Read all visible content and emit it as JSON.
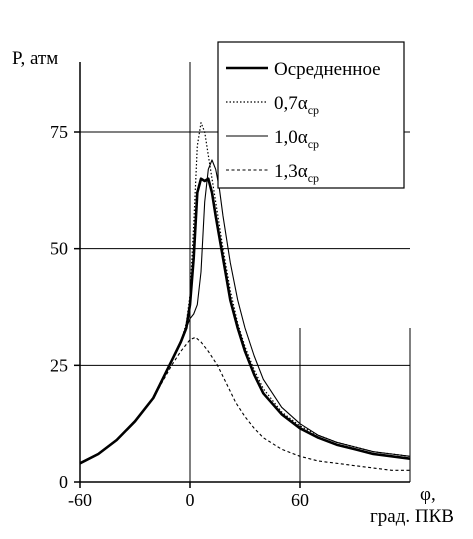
{
  "chart_data": {
    "type": "line",
    "ylabel": "P, атм",
    "xlabel_line1": "φ,",
    "xlabel_line2": "град. ПКВ",
    "xlim": [
      -60,
      120
    ],
    "ylim": [
      0,
      90
    ],
    "x_ticks": [
      {
        "value": -60,
        "label": "-60"
      },
      {
        "value": 0,
        "label": "0"
      },
      {
        "value": 60,
        "label": "60"
      }
    ],
    "y_ticks": [
      {
        "value": 0,
        "label": "0"
      },
      {
        "value": 25,
        "label": "25"
      },
      {
        "value": 50,
        "label": "50"
      },
      {
        "value": 75,
        "label": "75"
      }
    ],
    "grid": "partial",
    "legend_position": "top-right",
    "series": [
      {
        "name": "Осредненное",
        "subscript": "",
        "style": "thick",
        "x": [
          -60,
          -50,
          -40,
          -30,
          -20,
          -10,
          -5,
          -2,
          0,
          2,
          4,
          6,
          8,
          10,
          12,
          14,
          18,
          22,
          26,
          30,
          35,
          40,
          50,
          60,
          70,
          80,
          90,
          100,
          110,
          120
        ],
        "y": [
          4,
          6,
          9,
          13,
          18,
          26,
          30,
          33,
          38,
          48,
          62,
          65,
          64.5,
          65,
          62,
          57,
          48,
          39,
          33,
          28,
          23,
          19,
          14.5,
          11.5,
          9.5,
          8,
          7,
          6,
          5.5,
          5
        ]
      },
      {
        "name": "0,7α",
        "subscript": "ср",
        "style": "dotted",
        "x": [
          -60,
          -50,
          -40,
          -30,
          -20,
          -10,
          -5,
          -2,
          0,
          2,
          4,
          6,
          8,
          10,
          14,
          18,
          22,
          26,
          30,
          35,
          40,
          50,
          60,
          70,
          80,
          90,
          100,
          110,
          120
        ],
        "y": [
          4,
          6,
          9,
          13,
          18,
          26,
          30,
          34,
          40,
          55,
          72,
          77,
          75,
          70,
          60,
          50,
          41,
          34,
          29,
          24,
          20,
          15,
          12,
          10,
          8.5,
          7.5,
          6.5,
          6,
          5.5
        ]
      },
      {
        "name": "1,0α",
        "subscript": "ср",
        "style": "thin",
        "x": [
          -60,
          -50,
          -40,
          -30,
          -20,
          -10,
          -5,
          0,
          2,
          4,
          6,
          8,
          10,
          12,
          14,
          16,
          18,
          22,
          26,
          30,
          35,
          40,
          50,
          60,
          70,
          80,
          90,
          100,
          110,
          120
        ],
        "y": [
          4,
          6,
          9,
          13,
          18,
          26,
          30,
          35,
          36,
          38,
          45,
          60,
          67,
          69,
          67,
          63,
          57,
          47,
          39,
          33,
          27,
          22,
          16,
          12.5,
          10,
          8.5,
          7.5,
          6.5,
          6,
          5.5
        ]
      },
      {
        "name": "1,3α",
        "subscript": "ср",
        "style": "dashed",
        "x": [
          -60,
          -50,
          -40,
          -30,
          -20,
          -10,
          -5,
          0,
          3,
          6,
          10,
          15,
          20,
          25,
          30,
          35,
          40,
          50,
          60,
          70,
          80,
          90,
          100,
          110,
          120
        ],
        "y": [
          4,
          6,
          9,
          13,
          18,
          25,
          28,
          30.5,
          31,
          30,
          28,
          25,
          21,
          17,
          14,
          11.5,
          9.5,
          7,
          5.5,
          4.5,
          4,
          3.5,
          3,
          2.5,
          2.5
        ]
      }
    ]
  }
}
